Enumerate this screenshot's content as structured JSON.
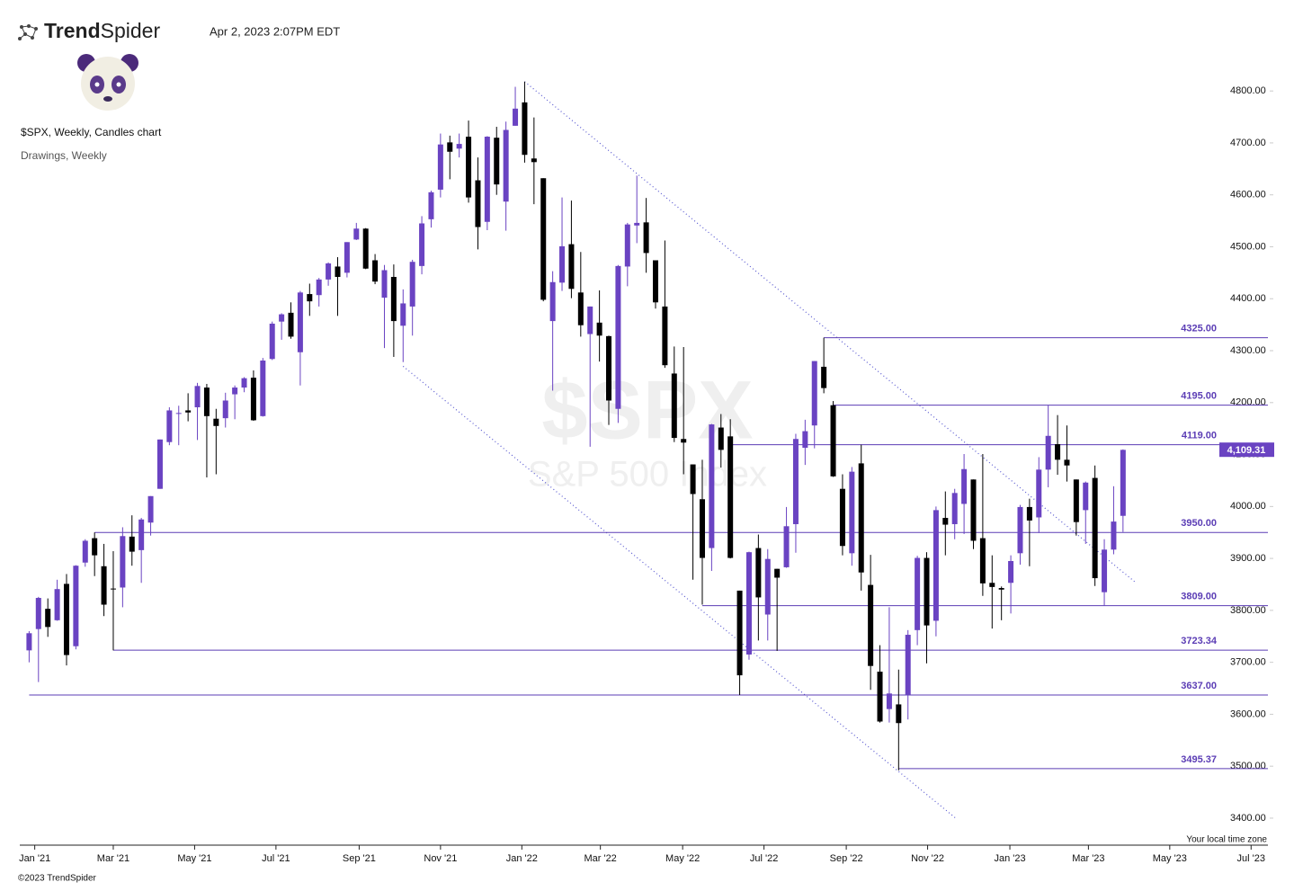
{
  "header": {
    "brand_bold": "Trend",
    "brand_light": "Spider",
    "timestamp": "Apr 2, 2023 2:07PM EDT",
    "chart_name": "$SPX, Weekly, Candles chart",
    "layers": "Drawings, Weekly"
  },
  "footer": {
    "timezone": "Your local time zone",
    "copyright": "©2023 TrendSpider"
  },
  "chart_data": {
    "type": "candlestick",
    "watermark": {
      "symbol": "$SPX",
      "name": "S&P 500 Index"
    },
    "up_color": "#6a43c2",
    "down_color": "#000000",
    "categories": [
      null,
      null,
      null,
      null,
      null,
      null,
      null,
      null,
      null,
      null,
      null,
      null,
      null,
      null,
      null,
      null,
      null,
      null,
      null,
      null,
      null,
      null,
      null,
      null,
      null,
      null,
      null,
      null,
      null,
      null,
      null,
      null,
      null,
      null,
      null,
      null,
      null,
      null,
      null,
      null,
      null,
      null,
      null,
      null,
      null,
      null,
      null,
      null,
      null,
      null,
      null,
      null,
      null,
      null,
      null,
      null,
      null,
      null,
      null,
      null,
      null,
      null,
      null,
      null,
      null,
      null,
      null,
      null,
      null,
      null,
      null,
      null,
      null,
      null,
      null,
      null,
      null,
      null,
      null,
      null,
      null,
      null,
      null,
      null,
      null,
      null,
      null,
      null,
      null,
      null,
      null,
      null,
      null,
      null,
      null,
      null,
      null,
      null,
      null,
      null,
      null,
      null,
      null,
      null,
      null,
      null,
      null,
      null,
      null,
      null,
      null,
      null,
      null,
      null,
      null,
      null,
      null,
      null
    ],
    "open": [
      3723,
      3764,
      3803,
      3781,
      3851,
      3731,
      3892,
      3939,
      3885,
      3842,
      3844,
      3942,
      3916,
      3969,
      4034,
      4124,
      4179,
      4185,
      4191,
      4229,
      4169,
      4170,
      4216,
      4229,
      4248,
      4174,
      4284,
      4356,
      4373,
      4297,
      4409,
      4407,
      4437,
      4462,
      4450,
      4514,
      4535,
      4474,
      4402,
      4442,
      4348,
      4385,
      4463,
      4553,
      4610,
      4701,
      4689,
      4712,
      4628,
      4548,
      4710,
      4587,
      4733,
      4778,
      4670,
      4632,
      4357,
      4431,
      4505,
      4412,
      4332,
      4354,
      4328,
      4188,
      4462,
      4541,
      4547,
      4474,
      4385,
      4256,
      4130,
      4081,
      4014,
      3920,
      4152,
      4135,
      3838,
      3715,
      3920,
      3792,
      3880,
      3883,
      3966,
      4113,
      4156,
      4269,
      4195,
      4034,
      3910,
      4083,
      3849,
      3682,
      3610,
      3619,
      3638,
      3762,
      3901,
      3780,
      3978,
      3966,
      4005,
      4052,
      3939,
      3853,
      3843,
      3853,
      3910,
      3999,
      3979,
      4071,
      4120,
      4090,
      4052,
      3993,
      4055,
      3835,
      3917,
      3982
    ],
    "high": [
      3760,
      3826,
      3823,
      3859,
      3870,
      3887,
      3937,
      3950,
      3928,
      3914,
      3960,
      3983,
      3978,
      4020,
      4129,
      4191,
      4194,
      4218,
      4238,
      4236,
      4188,
      4219,
      4233,
      4249,
      4262,
      4286,
      4356,
      4372,
      4393,
      4415,
      4429,
      4440,
      4470,
      4480,
      4509,
      4546,
      4536,
      4486,
      4465,
      4466,
      4418,
      4475,
      4559,
      4608,
      4718,
      4714,
      4718,
      4743,
      4672,
      4713,
      4731,
      4741,
      4808,
      4818,
      4749,
      4632,
      4453,
      4595,
      4589,
      4490,
      4385,
      4416,
      4329,
      4465,
      4546,
      4637,
      4594,
      4471,
      4512,
      4308,
      4307,
      4081,
      4090,
      4159,
      4178,
      4168,
      3838,
      3913,
      3946,
      3918,
      3880,
      3999,
      4140,
      4167,
      4280,
      4325,
      4203,
      4062,
      4076,
      4119,
      3907,
      3733,
      3806,
      3686,
      3762,
      3905,
      3912,
      4000,
      4029,
      4034,
      4101,
      4052,
      4101,
      3906,
      3846,
      3906,
      4003,
      4015,
      4095,
      4195,
      4176,
      4156,
      4052,
      4048,
      4079,
      3937,
      4039,
      4110
    ],
    "low": [
      3700,
      3662,
      3749,
      3780,
      3694,
      3725,
      3884,
      3866,
      3789,
      3723,
      3806,
      3886,
      3853,
      3944,
      4034,
      4118,
      4118,
      4164,
      4128,
      4056,
      4062,
      4152,
      4168,
      4220,
      4165,
      4173,
      4282,
      4321,
      4323,
      4233,
      4367,
      4385,
      4425,
      4367,
      4441,
      4513,
      4457,
      4428,
      4305,
      4288,
      4278,
      4329,
      4447,
      4537,
      4595,
      4630,
      4672,
      4585,
      4495,
      4532,
      4600,
      4531,
      4733,
      4662,
      4582,
      4395,
      4223,
      4415,
      4401,
      4327,
      4115,
      4279,
      4157,
      4161,
      4424,
      4507,
      4450,
      4381,
      4267,
      4124,
      4062,
      3859,
      3811,
      3876,
      4075,
      3900,
      3637,
      3705,
      3742,
      3742,
      3722,
      3882,
      3911,
      4080,
      4112,
      4218,
      4057,
      3906,
      3886,
      3838,
      3647,
      3584,
      3584,
      3492,
      3590,
      3733,
      3698,
      3750,
      3906,
      3937,
      3947,
      3918,
      3828,
      3765,
      3781,
      3794,
      3888,
      3885,
      3949,
      4037,
      4061,
      4048,
      3944,
      3928,
      3847,
      3809,
      3908,
      3951
    ],
    "close": [
      3756,
      3824,
      3768,
      3841,
      3714,
      3886,
      3934,
      3906,
      3811,
      3841,
      3943,
      3913,
      3975,
      4020,
      4129,
      4185,
      4180,
      4181,
      4232,
      4174,
      4155,
      4204,
      4229,
      4247,
      4166,
      4281,
      4352,
      4370,
      4327,
      4412,
      4395,
      4437,
      4468,
      4442,
      4509,
      4535,
      4458,
      4433,
      4455,
      4357,
      4391,
      4471,
      4545,
      4605,
      4697,
      4683,
      4698,
      4595,
      4538,
      4712,
      4620,
      4725,
      4766,
      4677,
      4663,
      4398,
      4432,
      4501,
      4419,
      4349,
      4385,
      4329,
      4204,
      4463,
      4543,
      4546,
      4488,
      4393,
      4272,
      4132,
      4123,
      4024,
      3901,
      4158,
      4109,
      3901,
      3675,
      3912,
      3825,
      3899,
      3863,
      3962,
      4130,
      4145,
      4280,
      4228,
      4058,
      3924,
      4067,
      3873,
      3693,
      3586,
      3640,
      3583,
      3753,
      3901,
      3771,
      3993,
      3965,
      4026,
      4072,
      3934,
      3852,
      3845,
      3840,
      3895,
      3999,
      3973,
      4071,
      4136,
      4090,
      4079,
      3970,
      4046,
      3862,
      3917,
      3971,
      4109
    ],
    "xlim": [
      -1,
      132.5
    ],
    "xticks": [
      {
        "value": 0.6,
        "label": "Jan '21"
      },
      {
        "value": 9.0,
        "label": "Mar '21"
      },
      {
        "value": 17.7,
        "label": "May '21"
      },
      {
        "value": 26.4,
        "label": "Jul '21"
      },
      {
        "value": 35.3,
        "label": "Sep '21"
      },
      {
        "value": 44.0,
        "label": "Nov '21"
      },
      {
        "value": 52.7,
        "label": "Jan '22"
      },
      {
        "value": 61.1,
        "label": "Mar '22"
      },
      {
        "value": 69.9,
        "label": "May '22"
      },
      {
        "value": 78.6,
        "label": "Jul '22"
      },
      {
        "value": 87.4,
        "label": "Sep '22"
      },
      {
        "value": 96.1,
        "label": "Nov '22"
      },
      {
        "value": 104.9,
        "label": "Jan '23"
      },
      {
        "value": 113.3,
        "label": "Mar '23"
      },
      {
        "value": 122.0,
        "label": "May '23"
      },
      {
        "value": 130.7,
        "label": "Jul '23"
      }
    ],
    "ylim": [
      3348,
      4828
    ],
    "yticks": [
      {
        "value": 3400,
        "label": "3400.00"
      },
      {
        "value": 3500,
        "label": "3500.00"
      },
      {
        "value": 3600,
        "label": "3600.00"
      },
      {
        "value": 3700,
        "label": "3700.00"
      },
      {
        "value": 3800,
        "label": "3800.00"
      },
      {
        "value": 3900,
        "label": "3900.00"
      },
      {
        "value": 4000,
        "label": "4000.00"
      },
      {
        "value": 4100,
        "label": "4100.00"
      },
      {
        "value": 4200,
        "label": "4200.00"
      },
      {
        "value": 4300,
        "label": "4300.00"
      },
      {
        "value": 4400,
        "label": "4400.00"
      },
      {
        "value": 4500,
        "label": "4500.00"
      },
      {
        "value": 4600,
        "label": "4600.00"
      },
      {
        "value": 4700,
        "label": "4700.00"
      },
      {
        "value": 4800,
        "label": "4800.00"
      }
    ],
    "levels": [
      {
        "value": 4325,
        "label": "4325.00",
        "from": 85
      },
      {
        "value": 4195,
        "label": "4195.00",
        "from": 86
      },
      {
        "value": 4119,
        "label": "4119.00",
        "from": 75
      },
      {
        "value": 3950,
        "label": "3950.00",
        "from": 7
      },
      {
        "value": 3809,
        "label": "3809.00",
        "from": 72
      },
      {
        "value": 3723.34,
        "label": "3723.34",
        "from": 9
      },
      {
        "value": 3637,
        "label": "3637.00",
        "from": 0
      },
      {
        "value": 3495.37,
        "label": "3495.37",
        "from": 93
      }
    ],
    "level_color": "#5b3db5",
    "trendlines": [
      {
        "x": [
          53,
          118.4
        ],
        "y": [
          4818,
          3853
        ]
      },
      {
        "x": [
          40,
          99.1
        ],
        "y": [
          4270,
          3400
        ]
      }
    ],
    "trendline_color": "#5858d0",
    "last_price": {
      "value": 4109.31,
      "label": "4,109.31"
    }
  }
}
